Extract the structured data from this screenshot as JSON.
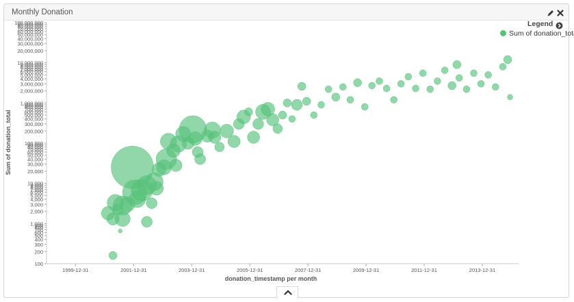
{
  "panel": {
    "title": "Monthly Donation"
  },
  "legend": {
    "toggle_label": "Legend",
    "series_label": "Sum of donation_total"
  },
  "icons": {
    "edit": "pencil-icon",
    "close": "close-icon",
    "legend_toggle": "legend-toggle-icon",
    "expand": "chevron-up-icon"
  },
  "colors": {
    "series": "#57c17b",
    "axis": "#b0b0b0",
    "text": "#555555"
  },
  "chart_data": {
    "type": "scatter",
    "title": "",
    "xlabel": "donation_timestamp per month",
    "ylabel": "Sum of donation_total",
    "y_scale": "log",
    "ylim": [
      100,
      100000000
    ],
    "xlim": [
      "1999-01-01",
      "2015-04-01"
    ],
    "x_ticks": [
      "1999-12-31",
      "2001-12-31",
      "2003-12-31",
      "2005-12-31",
      "2007-12-31",
      "2009-12-31",
      "2011-12-31",
      "2013-12-31"
    ],
    "y_ticks": [
      {
        "value": 100,
        "label": "100"
      },
      {
        "value": 200,
        "label": "200"
      },
      {
        "value": 300,
        "label": "300"
      },
      {
        "value": 400,
        "label": "400"
      },
      {
        "value": 500,
        "label": "500"
      },
      {
        "value": 600,
        "label": "600"
      },
      {
        "value": 700,
        "label": "700"
      },
      {
        "value": 800,
        "label": "800"
      },
      {
        "value": 900,
        "label": "900"
      },
      {
        "value": 1000,
        "label": "1,000"
      },
      {
        "value": 2000,
        "label": "2,000"
      },
      {
        "value": 3000,
        "label": "3,000"
      },
      {
        "value": 4000,
        "label": "4,000"
      },
      {
        "value": 5000,
        "label": "5,000"
      },
      {
        "value": 6000,
        "label": "6,000"
      },
      {
        "value": 7000,
        "label": "7,000"
      },
      {
        "value": 8000,
        "label": "8,000"
      },
      {
        "value": 9000,
        "label": "9,000"
      },
      {
        "value": 10000,
        "label": "10,000"
      },
      {
        "value": 20000,
        "label": "20,000"
      },
      {
        "value": 30000,
        "label": "30,000"
      },
      {
        "value": 40000,
        "label": "40,000"
      },
      {
        "value": 50000,
        "label": "50,000"
      },
      {
        "value": 60000,
        "label": "60,000"
      },
      {
        "value": 70000,
        "label": "70,000"
      },
      {
        "value": 80000,
        "label": "80,000"
      },
      {
        "value": 90000,
        "label": "90,000"
      },
      {
        "value": 100000,
        "label": "100,000"
      },
      {
        "value": 200000,
        "label": "200,000"
      },
      {
        "value": 300000,
        "label": "300,000"
      },
      {
        "value": 400000,
        "label": "400,000"
      },
      {
        "value": 500000,
        "label": "500,000"
      },
      {
        "value": 600000,
        "label": "600,000"
      },
      {
        "value": 700000,
        "label": "700,000"
      },
      {
        "value": 800000,
        "label": "800,000"
      },
      {
        "value": 900000,
        "label": "900,000"
      },
      {
        "value": 1000000,
        "label": "1,000,000"
      },
      {
        "value": 2000000,
        "label": "2,000,000"
      },
      {
        "value": 3000000,
        "label": "3,000,000"
      },
      {
        "value": 4000000,
        "label": "4,000,000"
      },
      {
        "value": 5000000,
        "label": "5,000,000"
      },
      {
        "value": 6000000,
        "label": "6,000,000"
      },
      {
        "value": 7000000,
        "label": "7,000,000"
      },
      {
        "value": 8000000,
        "label": "8,000,000"
      },
      {
        "value": 9000000,
        "label": "9,000,000"
      },
      {
        "value": 10000000,
        "label": "10,000,000"
      },
      {
        "value": 20000000,
        "label": "20,000,000"
      },
      {
        "value": 30000000,
        "label": "30,000,000"
      },
      {
        "value": 40000000,
        "label": "40,000,000"
      },
      {
        "value": 50000000,
        "label": "50,000,000"
      },
      {
        "value": 60000000,
        "label": "60,000,000"
      },
      {
        "value": 70000000,
        "label": "70,000,000"
      },
      {
        "value": 80000000,
        "label": "80,000,000"
      },
      {
        "value": 90000000,
        "label": "90,000,000"
      },
      {
        "value": 100000000,
        "label": "100,000,000"
      }
    ],
    "series": [
      {
        "name": "Sum of donation_total",
        "points": [
          {
            "x": "2001-04",
            "y": 160,
            "size": 6
          },
          {
            "x": "2001-07",
            "y": 650,
            "size": 3
          },
          {
            "x": "2001-02",
            "y": 1800,
            "size": 10
          },
          {
            "x": "2001-04",
            "y": 1300,
            "size": 9
          },
          {
            "x": "2001-06",
            "y": 2200,
            "size": 8
          },
          {
            "x": "2001-05",
            "y": 3300,
            "size": 12
          },
          {
            "x": "2001-08",
            "y": 1300,
            "size": 11
          },
          {
            "x": "2001-08",
            "y": 2800,
            "size": 14
          },
          {
            "x": "2001-10",
            "y": 3000,
            "size": 11
          },
          {
            "x": "2001-12",
            "y": 25000,
            "size": 31
          },
          {
            "x": "2002-01",
            "y": 6000,
            "size": 18
          },
          {
            "x": "2002-02",
            "y": 4000,
            "size": 12
          },
          {
            "x": "2002-04",
            "y": 6800,
            "size": 16
          },
          {
            "x": "2002-06",
            "y": 9000,
            "size": 14
          },
          {
            "x": "2002-06",
            "y": 1100,
            "size": 8
          },
          {
            "x": "2002-08",
            "y": 3200,
            "size": 8
          },
          {
            "x": "2002-09",
            "y": 11000,
            "size": 13
          },
          {
            "x": "2002-10",
            "y": 7500,
            "size": 10
          },
          {
            "x": "2002-11",
            "y": 22000,
            "size": 10
          },
          {
            "x": "2003-01",
            "y": 25000,
            "size": 11
          },
          {
            "x": "2003-02",
            "y": 40000,
            "size": 15
          },
          {
            "x": "2003-03",
            "y": 110000,
            "size": 12
          },
          {
            "x": "2003-05",
            "y": 65000,
            "size": 10
          },
          {
            "x": "2003-06",
            "y": 28000,
            "size": 9
          },
          {
            "x": "2003-07",
            "y": 95000,
            "size": 12
          },
          {
            "x": "2003-09",
            "y": 170000,
            "size": 11
          },
          {
            "x": "2003-11",
            "y": 100000,
            "size": 9
          },
          {
            "x": "2004-01",
            "y": 220000,
            "size": 20
          },
          {
            "x": "2004-02",
            "y": 130000,
            "size": 10
          },
          {
            "x": "2004-03",
            "y": 60000,
            "size": 8
          },
          {
            "x": "2004-04",
            "y": 40000,
            "size": 8
          },
          {
            "x": "2004-07",
            "y": 150000,
            "size": 9
          },
          {
            "x": "2004-09",
            "y": 210000,
            "size": 12
          },
          {
            "x": "2004-10",
            "y": 140000,
            "size": 9
          },
          {
            "x": "2004-12",
            "y": 80000,
            "size": 7
          },
          {
            "x": "2005-03",
            "y": 200000,
            "size": 10
          },
          {
            "x": "2005-06",
            "y": 110000,
            "size": 9
          },
          {
            "x": "2005-08",
            "y": 300000,
            "size": 8
          },
          {
            "x": "2005-10",
            "y": 450000,
            "size": 10
          },
          {
            "x": "2005-12",
            "y": 600000,
            "size": 6
          },
          {
            "x": "2006-02",
            "y": 140000,
            "size": 9
          },
          {
            "x": "2006-04",
            "y": 300000,
            "size": 8
          },
          {
            "x": "2006-06",
            "y": 600000,
            "size": 11
          },
          {
            "x": "2006-08",
            "y": 700000,
            "size": 10
          },
          {
            "x": "2006-10",
            "y": 380000,
            "size": 9
          },
          {
            "x": "2006-12",
            "y": 230000,
            "size": 7
          },
          {
            "x": "2007-02",
            "y": 500000,
            "size": 6
          },
          {
            "x": "2007-04",
            "y": 1000000,
            "size": 6
          },
          {
            "x": "2007-06",
            "y": 400000,
            "size": 5
          },
          {
            "x": "2007-08",
            "y": 900000,
            "size": 8
          },
          {
            "x": "2007-10",
            "y": 2600000,
            "size": 6
          },
          {
            "x": "2007-12",
            "y": 1100000,
            "size": 6
          },
          {
            "x": "2008-03",
            "y": 500000,
            "size": 5
          },
          {
            "x": "2008-06",
            "y": 900000,
            "size": 5
          },
          {
            "x": "2008-09",
            "y": 2200000,
            "size": 5
          },
          {
            "x": "2008-12",
            "y": 1400000,
            "size": 6
          },
          {
            "x": "2009-03",
            "y": 2500000,
            "size": 5
          },
          {
            "x": "2009-06",
            "y": 1200000,
            "size": 5
          },
          {
            "x": "2009-09",
            "y": 3200000,
            "size": 6
          },
          {
            "x": "2009-12",
            "y": 800000,
            "size": 5
          },
          {
            "x": "2010-03",
            "y": 2700000,
            "size": 5
          },
          {
            "x": "2010-06",
            "y": 3500000,
            "size": 5
          },
          {
            "x": "2010-09",
            "y": 2300000,
            "size": 5
          },
          {
            "x": "2010-12",
            "y": 1200000,
            "size": 5
          },
          {
            "x": "2011-03",
            "y": 3000000,
            "size": 5
          },
          {
            "x": "2011-06",
            "y": 4500000,
            "size": 5
          },
          {
            "x": "2011-09",
            "y": 2300000,
            "size": 5
          },
          {
            "x": "2011-12",
            "y": 5500000,
            "size": 5
          },
          {
            "x": "2012-03",
            "y": 2200000,
            "size": 5
          },
          {
            "x": "2012-06",
            "y": 3500000,
            "size": 5
          },
          {
            "x": "2012-09",
            "y": 6500000,
            "size": 5
          },
          {
            "x": "2012-12",
            "y": 2700000,
            "size": 6
          },
          {
            "x": "2013-03",
            "y": 4200000,
            "size": 5
          },
          {
            "x": "2013-06",
            "y": 2200000,
            "size": 5
          },
          {
            "x": "2013-09",
            "y": 5500000,
            "size": 5
          },
          {
            "x": "2013-12",
            "y": 3000000,
            "size": 5
          },
          {
            "x": "2014-03",
            "y": 5000000,
            "size": 5
          },
          {
            "x": "2014-06",
            "y": 2500000,
            "size": 5
          },
          {
            "x": "2014-09",
            "y": 8000000,
            "size": 5
          },
          {
            "x": "2014-11",
            "y": 12000000,
            "size": 6
          },
          {
            "x": "2014-12",
            "y": 1400000,
            "size": 4
          },
          {
            "x": "2013-02",
            "y": 9000000,
            "size": 6
          }
        ]
      }
    ]
  }
}
